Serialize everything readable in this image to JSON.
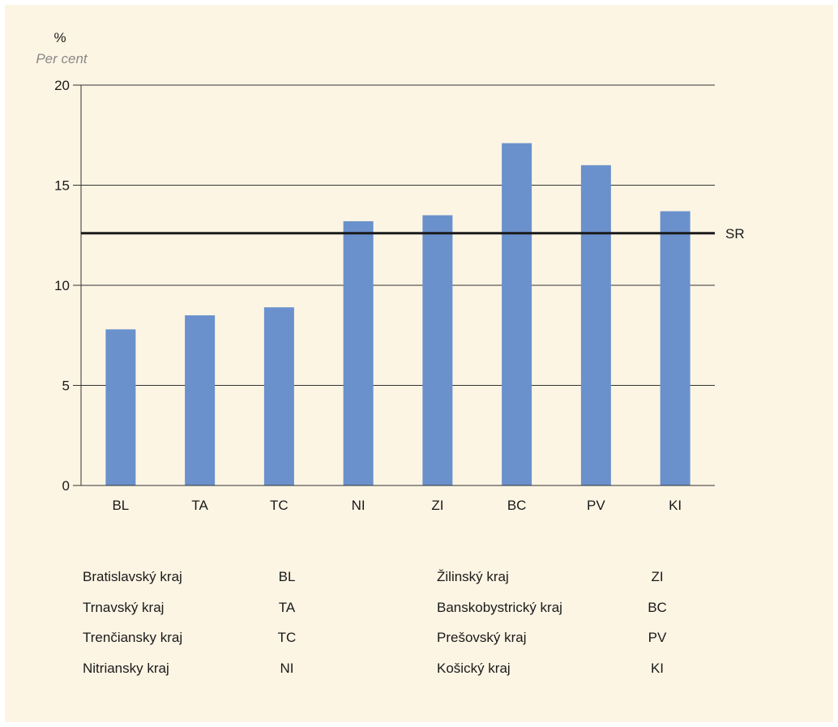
{
  "chart_data": {
    "type": "bar",
    "y_unit": "%",
    "y_unit_sub": "Per cent",
    "categories": [
      "BL",
      "TA",
      "TC",
      "NI",
      "ZI",
      "BC",
      "PV",
      "KI"
    ],
    "values": [
      7.8,
      8.5,
      8.9,
      13.2,
      13.5,
      17.1,
      16.0,
      13.7
    ],
    "ylim": [
      0,
      20
    ],
    "yticks": [
      0,
      5,
      10,
      15,
      20
    ],
    "grid": true,
    "bar_color": "#6a91cc",
    "reference_line": {
      "label": "SR",
      "value": 12.6,
      "color": "#1a1a1a"
    }
  },
  "legend": {
    "left": [
      {
        "name": "Bratislavský kraj",
        "code": "BL"
      },
      {
        "name": "Trnavský kraj",
        "code": "TA"
      },
      {
        "name": "Trenčiansky kraj",
        "code": "TC"
      },
      {
        "name": "Nitriansky kraj",
        "code": "NI"
      }
    ],
    "right": [
      {
        "name": "Žilinský kraj",
        "code": "ZI"
      },
      {
        "name": "Banskobystrický kraj",
        "code": "BC"
      },
      {
        "name": "Prešovský kraj",
        "code": "PV"
      },
      {
        "name": "Košický kraj",
        "code": "KI"
      }
    ]
  },
  "colors": {
    "background": "#fdf5e4"
  }
}
